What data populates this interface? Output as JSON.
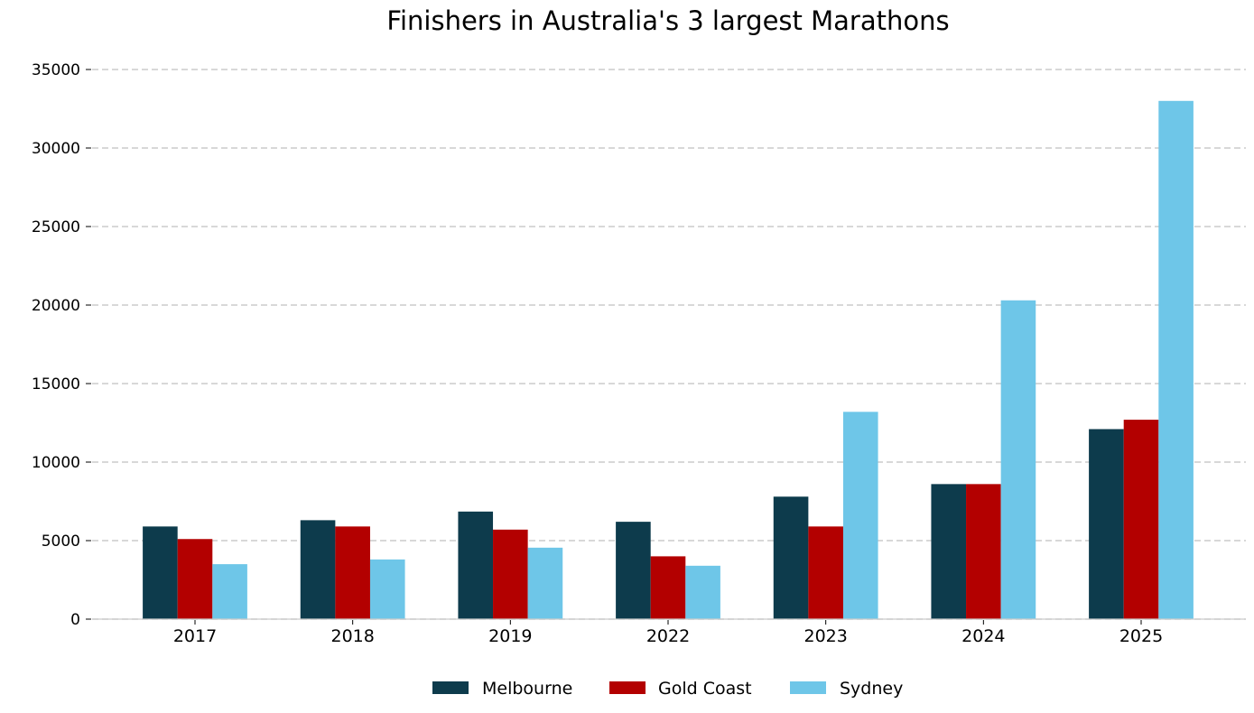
{
  "chart_data": {
    "type": "bar",
    "title": "Finishers in Australia's 3 largest Marathons",
    "xlabel": "",
    "ylabel": "",
    "categories": [
      "2017",
      "2018",
      "2019",
      "2022",
      "2023",
      "2024",
      "2025"
    ],
    "series": [
      {
        "name": "Melbourne",
        "color": "#0d3b4c",
        "values": [
          5900,
          6300,
          6850,
          6200,
          7800,
          8600,
          12100
        ]
      },
      {
        "name": "Gold Coast",
        "color": "#b30000",
        "values": [
          5100,
          5900,
          5700,
          4000,
          5900,
          8600,
          12700
        ]
      },
      {
        "name": "Sydney",
        "color": "#6ec6e8",
        "values": [
          3500,
          3800,
          4550,
          3400,
          13200,
          20300,
          33000
        ]
      }
    ],
    "ylim": [
      0,
      35000
    ],
    "yticks": [
      0,
      5000,
      10000,
      15000,
      20000,
      25000,
      30000,
      35000
    ],
    "grid": true,
    "legend_position": "bottom-center"
  }
}
